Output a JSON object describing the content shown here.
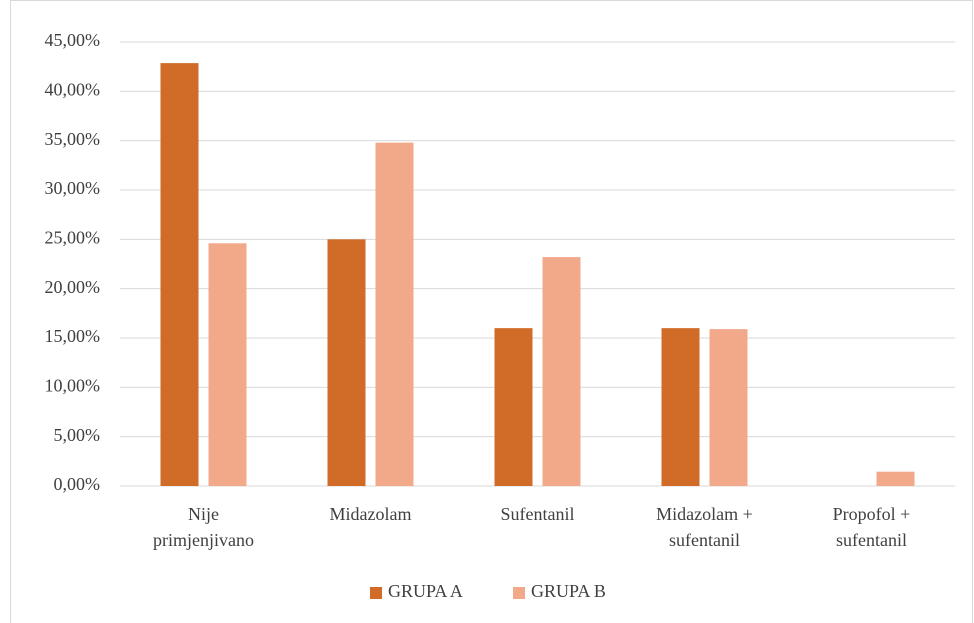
{
  "chart_data": {
    "type": "bar",
    "categories": [
      [
        "Nije",
        "primjenjivano"
      ],
      [
        "Midazolam"
      ],
      [
        "Sufentanil"
      ],
      [
        "Midazolam +",
        "sufentanil"
      ],
      [
        "Propofol +",
        "sufentanil"
      ]
    ],
    "series": [
      {
        "name": "GRUPA A",
        "color": "#d06b28",
        "values": [
          42.86,
          25,
          16,
          16,
          0
        ]
      },
      {
        "name": "GRUPA B",
        "color": "#f2a98a",
        "values": [
          24.6,
          34.8,
          23.2,
          15.9,
          1.45
        ]
      }
    ],
    "ylim": [
      0,
      45
    ],
    "yticks": [
      {
        "value": 0,
        "label": "0,00%"
      },
      {
        "value": 5,
        "label": "5,00%"
      },
      {
        "value": 10,
        "label": "10,00%"
      },
      {
        "value": 15,
        "label": "15,00%"
      },
      {
        "value": 20,
        "label": "20,00%"
      },
      {
        "value": 25,
        "label": "25,00%"
      },
      {
        "value": 30,
        "label": "30,00%"
      },
      {
        "value": 35,
        "label": "35,00%"
      },
      {
        "value": 40,
        "label": "40,00%"
      },
      {
        "value": 45,
        "label": "45,00%"
      }
    ],
    "grid": true,
    "legend": "bottom"
  }
}
